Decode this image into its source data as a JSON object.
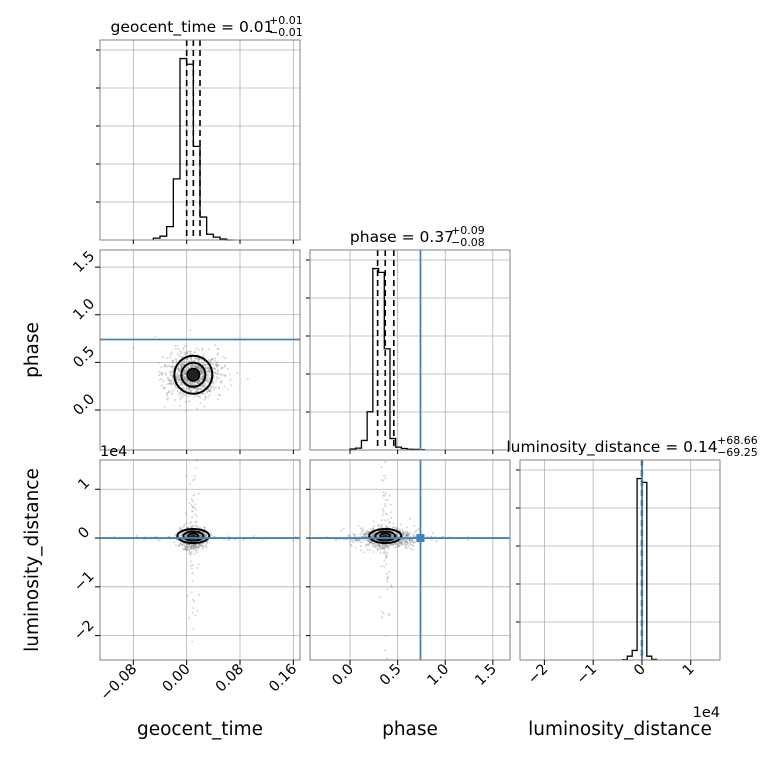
{
  "chart_data": {
    "type": "corner",
    "parameters": [
      "geocent_time",
      "phase",
      "luminosity_distance"
    ],
    "truths": {
      "phase": 0.74,
      "luminosity_distance": 0.0
    },
    "colors": {
      "hist": "#000000",
      "truth": "#4682b4",
      "grid": "#b0b0b0",
      "points": "#888888"
    },
    "titles": [
      {
        "param": "geocent_time",
        "text": "geocent_time = 0.01",
        "sup": "+0.01",
        "sub": "−0.01"
      },
      {
        "param": "phase",
        "text": "phase = 0.37",
        "sup": "+0.09",
        "sub": "−0.08"
      },
      {
        "param": "luminosity_distance",
        "text": "luminosity_distance = 0.14",
        "sup": "+68.66",
        "sub": "−69.25"
      }
    ],
    "axes": {
      "geocent_time": {
        "label": "geocent_time",
        "range": [
          -0.13,
          0.17
        ],
        "ticks": [
          -0.08,
          0.0,
          0.08,
          0.16
        ],
        "tick_labels": [
          "−0.08",
          "0.00",
          "0.08",
          "0.16"
        ]
      },
      "phase": {
        "label": "phase",
        "range": [
          -0.42,
          1.68
        ],
        "ticks": [
          0.0,
          0.5,
          1.0,
          1.5
        ],
        "tick_labels": [
          "0.0",
          "0.5",
          "1.0",
          "1.5"
        ]
      },
      "luminosity_distance": {
        "label": "luminosity_distance",
        "range": [
          -2.5,
          1.6
        ],
        "ticks": [
          -2,
          -1,
          0,
          1
        ],
        "tick_labels": [
          "−2",
          "−1",
          "0",
          "1"
        ],
        "offset_text": "1e4"
      }
    },
    "quantiles": {
      "geocent_time": [
        -0.0,
        0.01,
        0.02
      ],
      "phase": [
        0.29,
        0.37,
        0.46
      ],
      "luminosity_distance": [
        -0.007,
        0.0,
        0.007
      ]
    },
    "histograms": {
      "geocent_time": {
        "edges": [
          -0.05,
          -0.04,
          -0.03,
          -0.02,
          -0.01,
          0.0,
          0.01,
          0.02,
          0.03,
          0.04,
          0.05,
          0.06,
          0.07
        ],
        "counts": [
          0.01,
          0.02,
          0.07,
          0.32,
          0.95,
          0.92,
          0.49,
          0.12,
          0.03,
          0.015,
          0.005,
          0.0
        ]
      },
      "phase": {
        "edges": [
          0.0,
          0.06,
          0.12,
          0.18,
          0.24,
          0.3,
          0.36,
          0.42,
          0.48,
          0.54,
          0.6,
          0.66,
          0.72,
          0.78
        ],
        "counts": [
          0.005,
          0.01,
          0.05,
          0.2,
          0.95,
          0.93,
          0.53,
          0.06,
          0.015,
          0.008,
          0.004,
          0.003,
          0.002
        ]
      },
      "luminosity_distance": {
        "edges": [
          -0.4,
          -0.3,
          -0.2,
          -0.1,
          0.0,
          0.1,
          0.2,
          0.3
        ],
        "counts": [
          0.002,
          0.02,
          0.05,
          0.95,
          0.93,
          0.02,
          0.003
        ]
      }
    },
    "scatter_panels": [
      {
        "x": "geocent_time",
        "y": "phase"
      },
      {
        "x": "geocent_time",
        "y": "luminosity_distance"
      },
      {
        "x": "phase",
        "y": "luminosity_distance"
      }
    ],
    "grid": true
  }
}
